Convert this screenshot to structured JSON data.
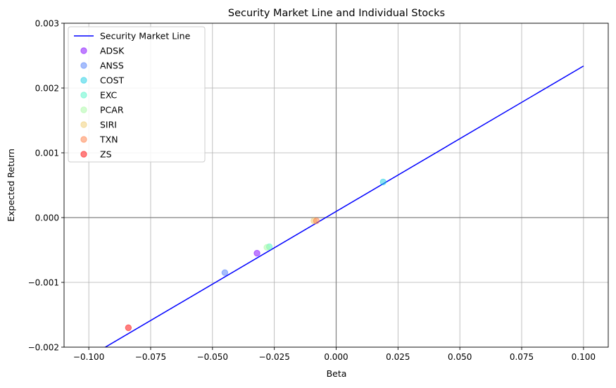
{
  "chart_data": {
    "type": "scatter",
    "title": "Security Market Line and Individual Stocks",
    "xlabel": "Beta",
    "ylabel": "Expected Return",
    "xlim": [
      -0.11,
      0.11
    ],
    "ylim": [
      -0.002,
      0.003
    ],
    "x_ticks": [
      -0.1,
      -0.075,
      -0.05,
      -0.025,
      0.0,
      0.025,
      0.05,
      0.075,
      0.1
    ],
    "x_tick_labels": [
      "−0.100",
      "−0.075",
      "−0.050",
      "−0.025",
      "0.000",
      "0.025",
      "0.050",
      "0.075",
      "0.100"
    ],
    "y_ticks": [
      -0.002,
      -0.001,
      0.0,
      0.001,
      0.002,
      0.003
    ],
    "y_tick_labels": [
      "−0.002",
      "−0.001",
      "0.000",
      "0.001",
      "0.002",
      "0.003"
    ],
    "grid": true,
    "legend_position": "upper-left",
    "line": {
      "name": "Security Market Line",
      "color": "#0000ff",
      "x": [
        -0.1,
        0.1
      ],
      "y": [
        -0.00215,
        0.00234
      ]
    },
    "points": [
      {
        "name": "ADSK",
        "color": "#8000ff",
        "x": -0.032,
        "y": -0.00055
      },
      {
        "name": "ANSS",
        "color": "#4e7bf9",
        "x": -0.045,
        "y": -0.00085
      },
      {
        "name": "COST",
        "color": "#1acee3",
        "x": 0.019,
        "y": 0.00055
      },
      {
        "name": "EXC",
        "color": "#4ff5c8",
        "x": -0.027,
        "y": -0.00045
      },
      {
        "name": "PCAR",
        "color": "#a5f9a2",
        "x": -0.028,
        "y": -0.00046
      },
      {
        "name": "SIRI",
        "color": "#f0cc6e",
        "x": -0.009,
        "y": -5e-05
      },
      {
        "name": "TXN",
        "color": "#ff7b41",
        "x": -0.008,
        "y": -5e-05
      },
      {
        "name": "ZS",
        "color": "#ff0000",
        "x": -0.084,
        "y": -0.0017
      }
    ]
  }
}
